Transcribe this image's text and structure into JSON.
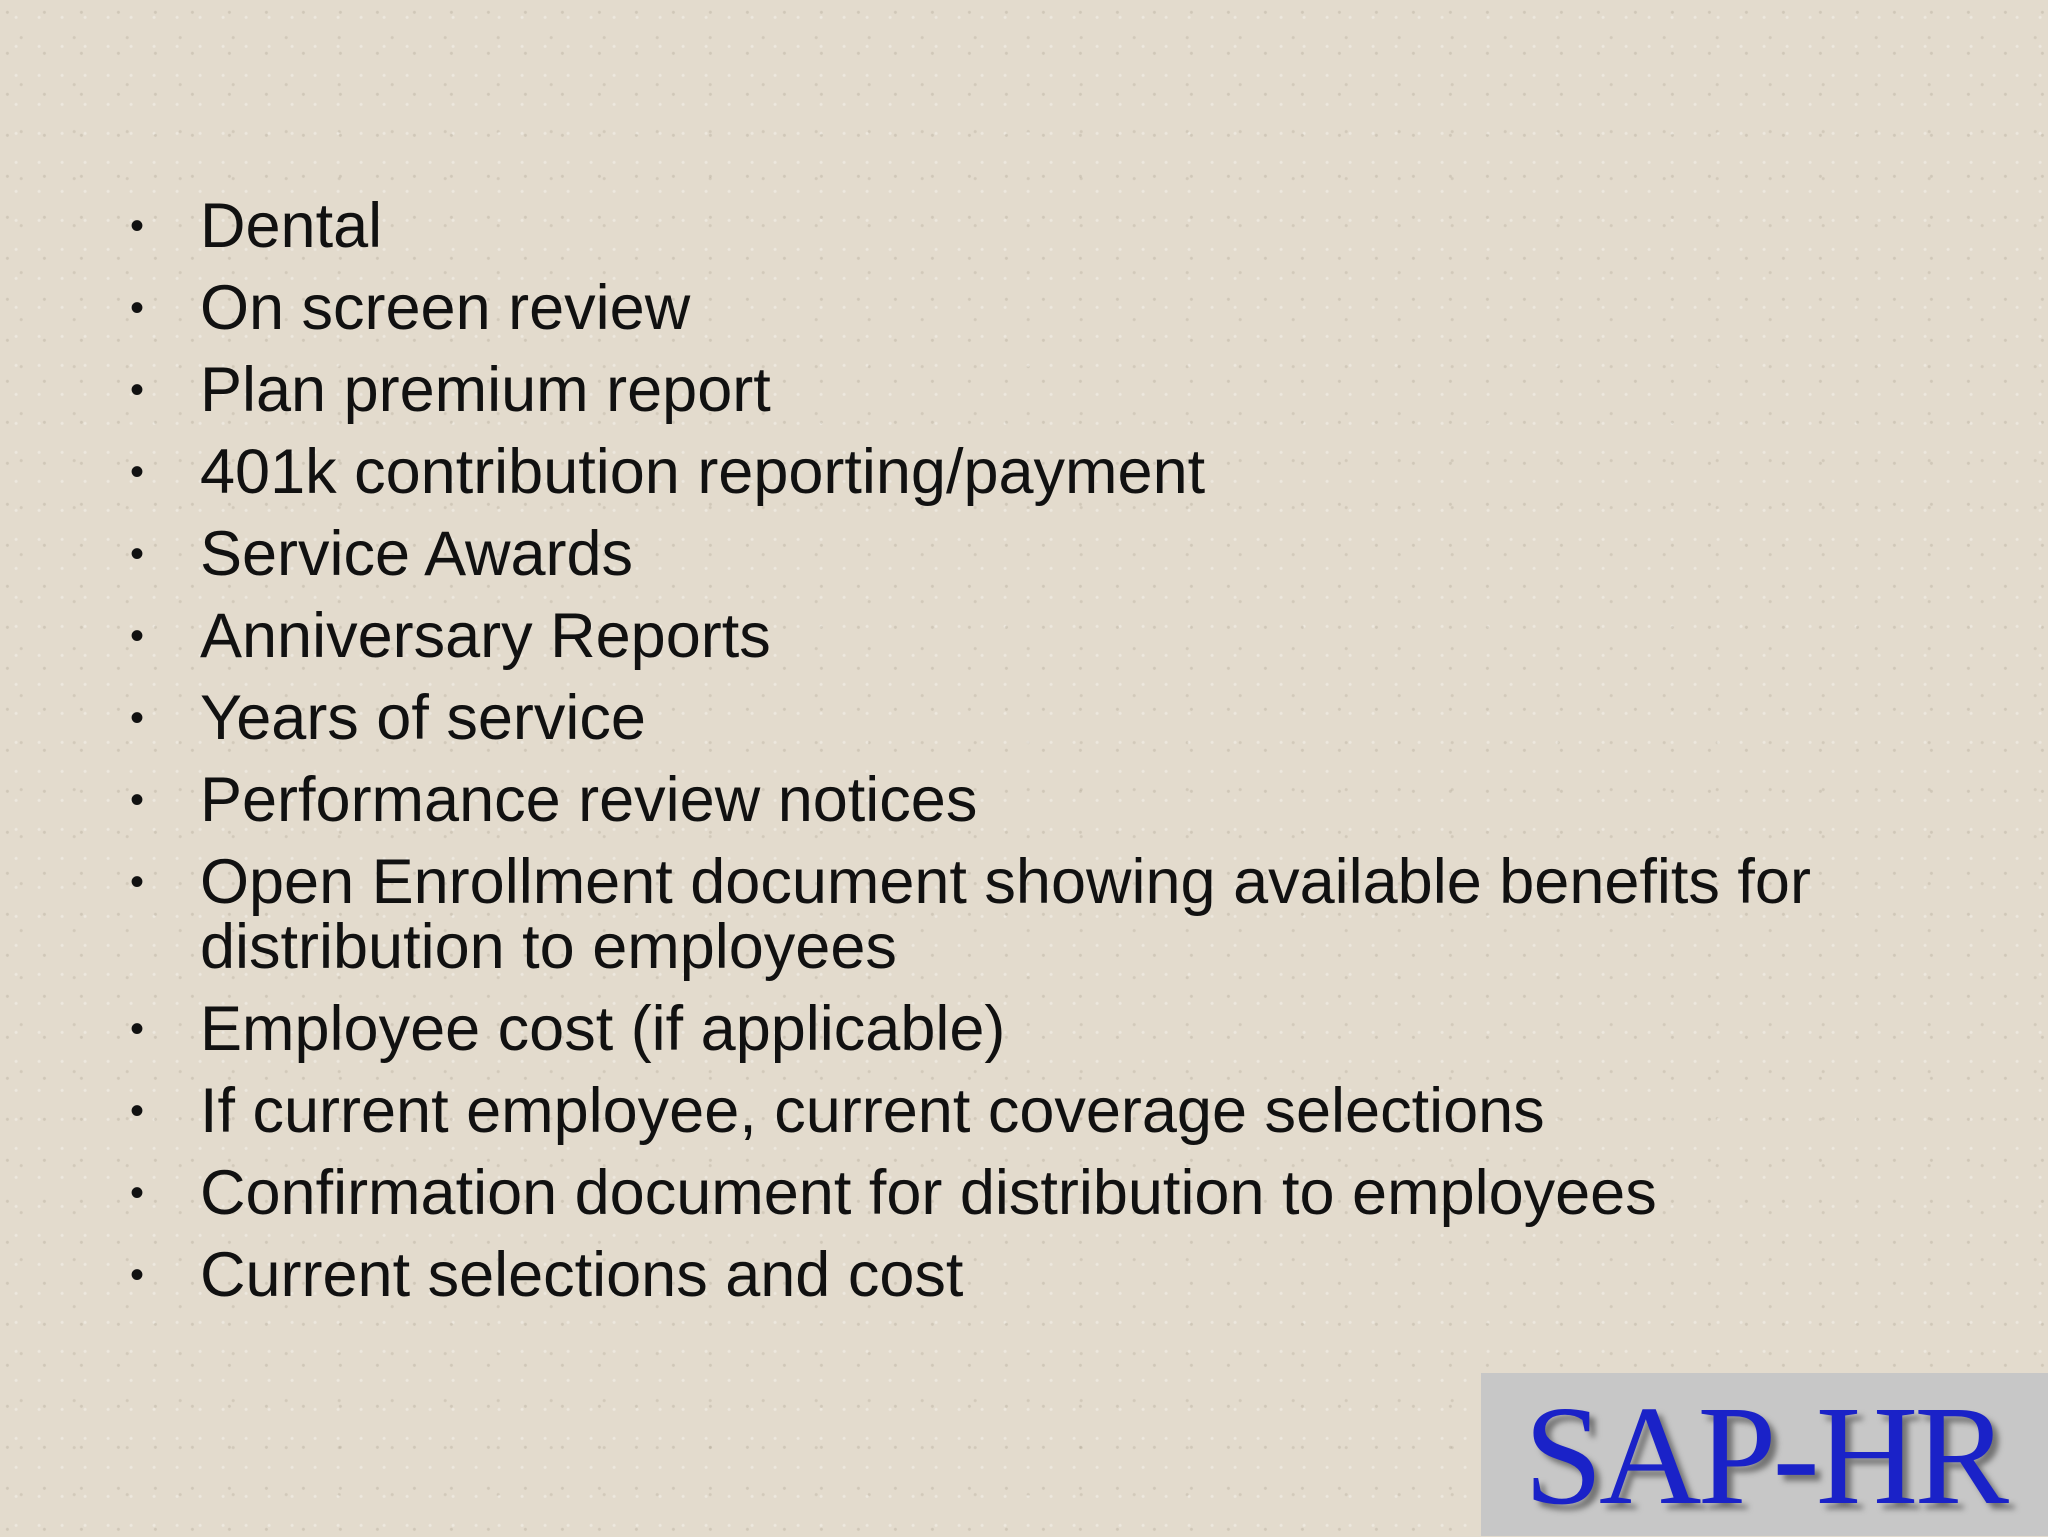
{
  "slide": {
    "bullets": [
      "Dental",
      "On screen review",
      "Plan premium report",
      "401k contribution reporting/payment",
      "Service Awards",
      "Anniversary Reports",
      "Years of service",
      "Performance review notices",
      "Open Enrollment document showing available benefits for distribution to employees",
      "Employee cost (if applicable)",
      "If current employee, current coverage selections",
      "Confirmation document for distribution to employees",
      "Current selections and cost"
    ],
    "bullet_glyph": "•",
    "logo_text": "SAP-HR"
  }
}
